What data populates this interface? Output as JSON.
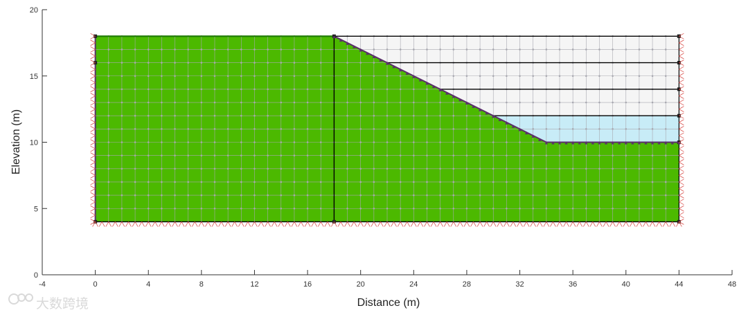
{
  "chart_data": {
    "type": "mesh",
    "xlabel": "Distance (m)",
    "ylabel": "Elevation (m)",
    "xlim": [
      -4,
      48
    ],
    "ylim": [
      0,
      20
    ],
    "xticks": [
      "-4",
      "0",
      "4",
      "8",
      "12",
      "16",
      "20",
      "24",
      "28",
      "32",
      "36",
      "40",
      "44",
      "48"
    ],
    "yticks": [
      "0",
      "5",
      "10",
      "15",
      "20"
    ],
    "regions": [
      {
        "name": "soil-left",
        "color": "#4cb900",
        "polygon": [
          [
            0,
            4
          ],
          [
            18,
            4
          ],
          [
            18,
            18
          ],
          [
            0,
            18
          ]
        ]
      },
      {
        "name": "soil-slope",
        "color": "#4cb900",
        "polygon": [
          [
            18,
            4
          ],
          [
            44,
            4
          ],
          [
            44,
            10
          ],
          [
            34,
            10
          ],
          [
            18,
            18
          ]
        ]
      },
      {
        "name": "water",
        "color": "#c8ecf7",
        "polygon": [
          [
            30,
            12
          ],
          [
            44,
            12
          ],
          [
            44,
            10
          ],
          [
            34,
            10
          ]
        ]
      },
      {
        "name": "air",
        "color": "#f5f5f5",
        "polygon": [
          [
            18,
            18
          ],
          [
            44,
            18
          ],
          [
            44,
            12
          ],
          [
            30,
            12
          ]
        ]
      }
    ],
    "layer_lines_elevation": [
      18,
      16,
      14,
      12,
      10
    ],
    "mesh_spacing": 1,
    "boundary_supports": [
      "left",
      "right",
      "bottom"
    ],
    "accent_colors": {
      "support": "#d9534f",
      "surface_marker": "#5a2f6b",
      "mesh": "#a8a8b0",
      "boundary": "#000000"
    }
  },
  "watermark": {
    "text": "大数跨境"
  }
}
